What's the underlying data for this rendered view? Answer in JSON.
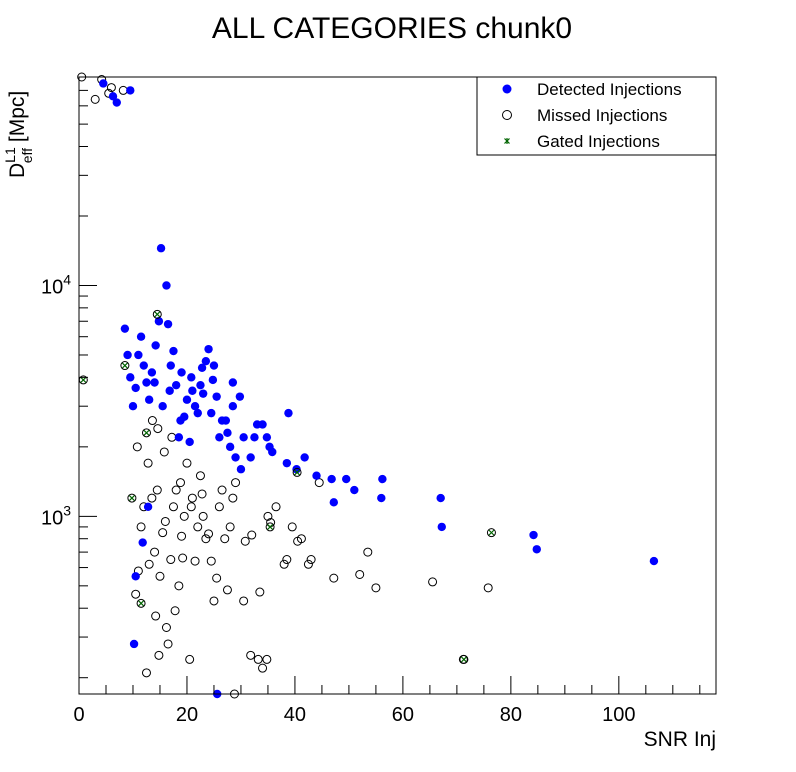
{
  "chart_data": {
    "type": "scatter",
    "title": "ALL CATEGORIES chunk0",
    "xlabel": "SNR Inj",
    "ylabel": {
      "base": "D",
      "sup": "L1",
      "sub": "eff",
      "unit": " [Mpc]"
    },
    "xlim": [
      0,
      118
    ],
    "ylim": [
      170,
      80000
    ],
    "y_scale": "log",
    "x_ticks": [
      0,
      20,
      40,
      60,
      80,
      100
    ],
    "y_ticks": [
      {
        "value": 1000,
        "base": "10",
        "exp": "3"
      },
      {
        "value": 10000,
        "base": "10",
        "exp": "4"
      }
    ],
    "grid": false,
    "legend_position": "top-right",
    "colors": {
      "detected": "#0000ff",
      "missed": "#000000",
      "gated": "#006400"
    },
    "series": [
      {
        "name": "Detected Injections",
        "marker": "filled-circle",
        "points": [
          [
            106.5,
            640
          ],
          [
            84.8,
            720
          ],
          [
            84.2,
            830
          ],
          [
            67.2,
            900
          ],
          [
            67.0,
            1200
          ],
          [
            56.2,
            1450
          ],
          [
            56.0,
            1200
          ],
          [
            51.0,
            1300
          ],
          [
            49.5,
            1450
          ],
          [
            47.2,
            1150
          ],
          [
            46.8,
            1450
          ],
          [
            44.0,
            1500
          ],
          [
            41.8,
            1800
          ],
          [
            40.3,
            1600
          ],
          [
            38.5,
            1700
          ],
          [
            38.8,
            2800
          ],
          [
            35.8,
            1900
          ],
          [
            35.3,
            2000
          ],
          [
            34.8,
            2200
          ],
          [
            34.0,
            2500
          ],
          [
            33.0,
            2500
          ],
          [
            32.5,
            2200
          ],
          [
            31.8,
            1800
          ],
          [
            30.5,
            2200
          ],
          [
            30.0,
            1600
          ],
          [
            29.0,
            1800
          ],
          [
            28.0,
            2000
          ],
          [
            27.5,
            2300
          ],
          [
            26.5,
            2600
          ],
          [
            28.5,
            3000
          ],
          [
            29.8,
            3300
          ],
          [
            28.5,
            3800
          ],
          [
            27.2,
            2600
          ],
          [
            26.0,
            2200
          ],
          [
            25.5,
            3300
          ],
          [
            25.0,
            4500
          ],
          [
            24.5,
            2800
          ],
          [
            24.0,
            5300
          ],
          [
            23.5,
            4700
          ],
          [
            22.5,
            3700
          ],
          [
            22.0,
            2800
          ],
          [
            21.5,
            3000
          ],
          [
            20.8,
            4000
          ],
          [
            20.0,
            3200
          ],
          [
            19.5,
            2700
          ],
          [
            18.8,
            2600
          ],
          [
            18.0,
            3700
          ],
          [
            17.5,
            5200
          ],
          [
            17.0,
            4500
          ],
          [
            16.5,
            6800
          ],
          [
            16.2,
            10000
          ],
          [
            15.2,
            14500
          ],
          [
            14.8,
            7000
          ],
          [
            14.2,
            5500
          ],
          [
            13.5,
            4200
          ],
          [
            13.0,
            3200
          ],
          [
            12.5,
            3800
          ],
          [
            12.0,
            4500
          ],
          [
            11.5,
            6000
          ],
          [
            11.0,
            5000
          ],
          [
            10.5,
            3600
          ],
          [
            10.0,
            3000
          ],
          [
            9.5,
            4000
          ],
          [
            9.0,
            5000
          ],
          [
            8.5,
            6500
          ],
          [
            20.5,
            2100
          ],
          [
            18.5,
            2200
          ],
          [
            19.0,
            4200
          ],
          [
            21.0,
            3500
          ],
          [
            23.0,
            3400
          ],
          [
            24.8,
            3900
          ],
          [
            22.8,
            4400
          ],
          [
            15.5,
            3000
          ],
          [
            16.8,
            3500
          ],
          [
            14.0,
            3800
          ],
          [
            12.8,
            1100
          ],
          [
            11.8,
            770
          ],
          [
            10.2,
            280
          ],
          [
            25.6,
            170
          ],
          [
            10.5,
            550
          ],
          [
            4.5,
            75000
          ],
          [
            6.3,
            66000
          ],
          [
            7.0,
            62000
          ],
          [
            9.5,
            70000
          ]
        ]
      },
      {
        "name": "Missed Injections",
        "marker": "open-circle",
        "points": [
          [
            75.8,
            490
          ],
          [
            71.2,
            240
          ],
          [
            65.5,
            520
          ],
          [
            55.0,
            490
          ],
          [
            53.5,
            700
          ],
          [
            52.0,
            560
          ],
          [
            47.2,
            540
          ],
          [
            43.0,
            650
          ],
          [
            42.5,
            620
          ],
          [
            41.2,
            800
          ],
          [
            40.5,
            780
          ],
          [
            39.5,
            900
          ],
          [
            38.5,
            650
          ],
          [
            38.0,
            620
          ],
          [
            35.5,
            940
          ],
          [
            35.0,
            1000
          ],
          [
            34.8,
            240
          ],
          [
            34.0,
            220
          ],
          [
            33.5,
            470
          ],
          [
            32.0,
            830
          ],
          [
            31.8,
            250
          ],
          [
            30.8,
            780
          ],
          [
            30.5,
            430
          ],
          [
            29.0,
            1400
          ],
          [
            28.5,
            1200
          ],
          [
            28.0,
            900
          ],
          [
            27.0,
            800
          ],
          [
            26.5,
            1300
          ],
          [
            26.0,
            1100
          ],
          [
            25.5,
            540
          ],
          [
            25.0,
            430
          ],
          [
            25.0,
            160
          ],
          [
            24.5,
            640
          ],
          [
            23.5,
            800
          ],
          [
            23.0,
            1000
          ],
          [
            22.5,
            1500
          ],
          [
            22.0,
            900
          ],
          [
            21.5,
            640
          ],
          [
            21.0,
            1200
          ],
          [
            20.5,
            240
          ],
          [
            20.0,
            1700
          ],
          [
            19.5,
            1000
          ],
          [
            19.0,
            820
          ],
          [
            18.5,
            500
          ],
          [
            18.0,
            1300
          ],
          [
            17.5,
            1100
          ],
          [
            17.0,
            650
          ],
          [
            16.5,
            280
          ],
          [
            16.0,
            950
          ],
          [
            15.5,
            850
          ],
          [
            15.0,
            550
          ],
          [
            14.8,
            250
          ],
          [
            14.5,
            1300
          ],
          [
            14.0,
            700
          ],
          [
            13.5,
            1200
          ],
          [
            13.0,
            620
          ],
          [
            12.5,
            210
          ],
          [
            12.0,
            1100
          ],
          [
            11.5,
            900
          ],
          [
            11.0,
            580
          ],
          [
            10.5,
            460
          ],
          [
            27.5,
            480
          ],
          [
            24.0,
            840
          ],
          [
            20.8,
            1100
          ],
          [
            19.2,
            660
          ],
          [
            17.8,
            390
          ],
          [
            16.2,
            330
          ],
          [
            14.2,
            370
          ],
          [
            18.8,
            1400
          ],
          [
            22.8,
            1250
          ],
          [
            28.8,
            170
          ],
          [
            33.2,
            240
          ],
          [
            36.5,
            1100
          ],
          [
            44.5,
            1400
          ],
          [
            12.8,
            1700
          ],
          [
            15.8,
            1900
          ],
          [
            17.2,
            2200
          ],
          [
            13.6,
            2600
          ],
          [
            14.6,
            2400
          ],
          [
            10.8,
            2000
          ],
          [
            4.2,
            78000
          ],
          [
            6.0,
            72000
          ],
          [
            8.2,
            70000
          ],
          [
            3.0,
            64000
          ],
          [
            5.5,
            68000
          ],
          [
            0.5,
            80000
          ]
        ]
      },
      {
        "name": "Gated Injections",
        "marker": "star",
        "points": [
          [
            71.3,
            240
          ],
          [
            76.4,
            850
          ],
          [
            40.4,
            1550
          ],
          [
            35.4,
            900
          ],
          [
            11.5,
            420
          ],
          [
            14.5,
            7500
          ],
          [
            9.8,
            1200
          ],
          [
            0.8,
            3900
          ],
          [
            12.5,
            2300
          ],
          [
            8.5,
            4500
          ]
        ]
      }
    ]
  }
}
